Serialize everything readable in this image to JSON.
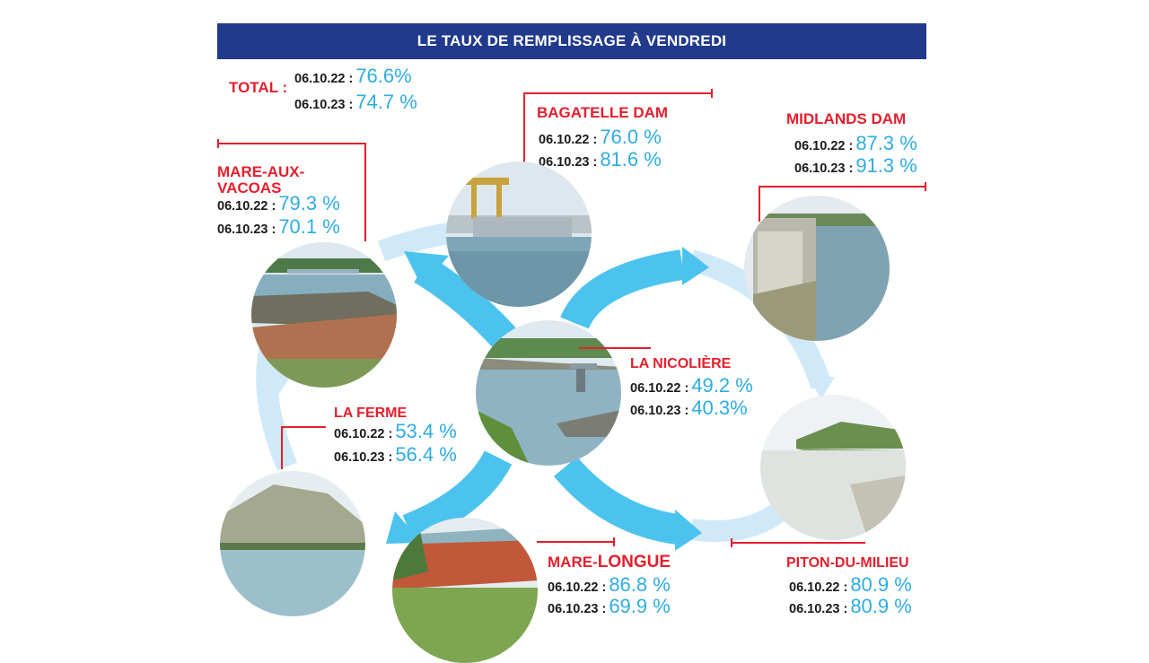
{
  "banner": "LE TAUX DE REMPLISSAGE À VENDREDI",
  "total": {
    "label": "TOTAL :",
    "d1": "06.10.22 :",
    "v1": "76.6%",
    "d2": "06.10.23 :",
    "v2": "74.7 %"
  },
  "bagatelle": {
    "name": "BAGATELLE DAM",
    "d1": "06.10.22 :",
    "v1": "76.0 %",
    "d2": "06.10.23 :",
    "v2": "81.6 %"
  },
  "midlands": {
    "name": "MIDLANDS DAM",
    "d1": "06.10.22 :",
    "v1": "87.3 %",
    "d2": "06.10.23 :",
    "v2": "91.3 %"
  },
  "mare_aux_vacoas": {
    "name_line1": "MARE-AUX-",
    "name_line2": "VACOAS",
    "d1": "06.10.22 :",
    "v1": "79.3 %",
    "d2": "06.10.23 :",
    "v2": "70.1 %"
  },
  "la_nicoliere": {
    "name": "LA NICOLIÈRE",
    "d1": "06.10.22 :",
    "v1": "49.2 %",
    "d2": "06.10.23 :",
    "v2": "40.3%"
  },
  "la_ferme": {
    "name": "LA FERME",
    "d1": "06.10.22 :",
    "v1": "53.4 %",
    "d2": "06.10.23 :",
    "v2": "56.4 %"
  },
  "mare_longue": {
    "name_part1": "MARE-",
    "name_part2": "LONGUE",
    "d1": "06.10.22 :",
    "v1": "86.8 %",
    "d2": "06.10.23 :",
    "v2": "69.9 %"
  },
  "piton_du_milieu": {
    "name": "PITON-DU-MILIEU",
    "d1": "06.10.22 :",
    "v1": "80.9 %",
    "d2": "06.10.23 :",
    "v2": "80.9 %"
  },
  "colors": {
    "banner": "#213a8c",
    "title_red": "#e41f2d",
    "value_blue": "#2eace2",
    "arrow_dark": "#4cc3ef",
    "arrow_light": "#cfe9f8"
  }
}
